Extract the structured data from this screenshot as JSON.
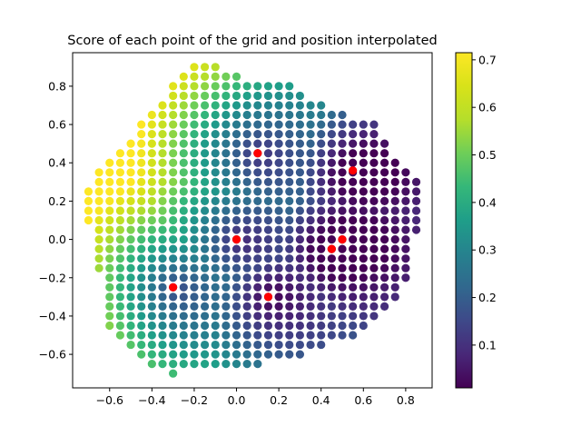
{
  "chart_data": {
    "type": "scatter",
    "title": "Score of each point of the grid and position interpolated",
    "xlabel": "",
    "ylabel": "",
    "xlim": [
      -0.775,
      0.925
    ],
    "ylim": [
      -0.775,
      0.975
    ],
    "xticks": [
      -0.6,
      -0.4,
      -0.2,
      0.0,
      0.2,
      0.4,
      0.6,
      0.8
    ],
    "yticks": [
      -0.6,
      -0.4,
      -0.2,
      0.0,
      0.2,
      0.4,
      0.6,
      0.8
    ],
    "grid": false,
    "grid_spacing": 0.05,
    "colormap": "viridis",
    "colorbar": {
      "min": 0.01,
      "max": 0.715,
      "ticks": [
        0.1,
        0.2,
        0.3,
        0.4,
        0.5,
        0.6,
        0.7
      ]
    },
    "grid_row_extents": [
      {
        "y": 0.9,
        "x": [
          -0.2,
          -0.1
        ]
      },
      {
        "y": 0.85,
        "x": [
          -0.25,
          0.0
        ]
      },
      {
        "y": 0.8,
        "x": [
          -0.3,
          0.25
        ]
      },
      {
        "y": 0.75,
        "x": [
          -0.3,
          0.3
        ]
      },
      {
        "y": 0.7,
        "x": [
          -0.35,
          0.4
        ]
      },
      {
        "y": 0.65,
        "x": [
          -0.4,
          0.5
        ]
      },
      {
        "y": 0.6,
        "x": [
          -0.45,
          0.65
        ]
      },
      {
        "y": 0.55,
        "x": [
          -0.45,
          0.65
        ]
      },
      {
        "y": 0.5,
        "x": [
          -0.5,
          0.7
        ]
      },
      {
        "y": 0.45,
        "x": [
          -0.55,
          0.7
        ]
      },
      {
        "y": 0.4,
        "x": [
          -0.6,
          0.75
        ]
      },
      {
        "y": 0.35,
        "x": [
          -0.65,
          0.8
        ]
      },
      {
        "y": 0.3,
        "x": [
          -0.65,
          0.85
        ]
      },
      {
        "y": 0.25,
        "x": [
          -0.7,
          0.85
        ]
      },
      {
        "y": 0.2,
        "x": [
          -0.7,
          0.85
        ]
      },
      {
        "y": 0.15,
        "x": [
          -0.7,
          0.85
        ]
      },
      {
        "y": 0.1,
        "x": [
          -0.7,
          0.85
        ]
      },
      {
        "y": 0.05,
        "x": [
          -0.65,
          0.85
        ]
      },
      {
        "y": 0.0,
        "x": [
          -0.65,
          0.8
        ]
      },
      {
        "y": -0.05,
        "x": [
          -0.65,
          0.8
        ]
      },
      {
        "y": -0.1,
        "x": [
          -0.65,
          0.8
        ]
      },
      {
        "y": -0.15,
        "x": [
          -0.65,
          0.8
        ]
      },
      {
        "y": -0.2,
        "x": [
          -0.6,
          0.8
        ]
      },
      {
        "y": -0.25,
        "x": [
          -0.6,
          0.75
        ]
      },
      {
        "y": -0.3,
        "x": [
          -0.6,
          0.75
        ]
      },
      {
        "y": -0.35,
        "x": [
          -0.6,
          0.7
        ]
      },
      {
        "y": -0.4,
        "x": [
          -0.6,
          0.65
        ]
      },
      {
        "y": -0.45,
        "x": [
          -0.6,
          0.6
        ]
      },
      {
        "y": -0.5,
        "x": [
          -0.55,
          0.55
        ]
      },
      {
        "y": -0.55,
        "x": [
          -0.5,
          0.4
        ]
      },
      {
        "y": -0.6,
        "x": [
          -0.45,
          0.3
        ]
      },
      {
        "y": -0.65,
        "x": [
          -0.4,
          0.1
        ]
      },
      {
        "y": -0.7,
        "x": [
          -0.3,
          -0.3
        ]
      }
    ],
    "score_field": {
      "base": 0.08,
      "minima": [
        {
          "x": 0.1,
          "y": 0.45
        },
        {
          "x": 0.55,
          "y": 0.35
        },
        {
          "x": 0.0,
          "y": 0.0
        },
        {
          "x": 0.45,
          "y": -0.05
        },
        {
          "x": 0.5,
          "y": 0.0
        },
        {
          "x": -0.3,
          "y": -0.25
        },
        {
          "x": 0.15,
          "y": -0.3
        }
      ],
      "slope_x": -0.34,
      "slope_y": 0.1
    },
    "interpolated_points": {
      "color": "#ff0000",
      "points": [
        {
          "x": 0.1,
          "y": 0.45
        },
        {
          "x": 0.55,
          "y": 0.36
        },
        {
          "x": 0.0,
          "y": 0.0
        },
        {
          "x": 0.45,
          "y": -0.05
        },
        {
          "x": 0.5,
          "y": 0.0
        },
        {
          "x": -0.3,
          "y": -0.25
        },
        {
          "x": 0.15,
          "y": -0.3
        }
      ]
    }
  }
}
